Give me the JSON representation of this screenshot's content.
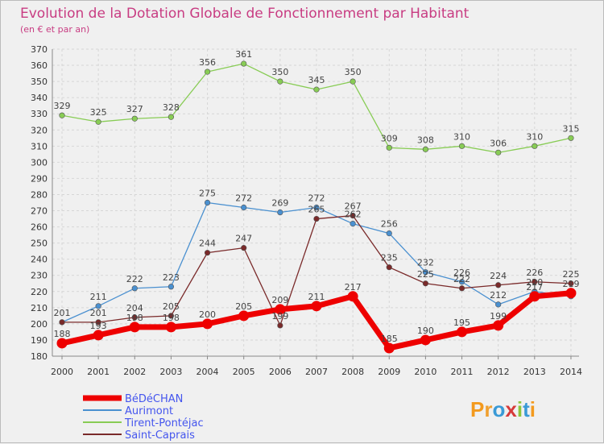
{
  "chart_data": {
    "type": "line",
    "title": "Evolution de la Dotation Globale de Fonctionnement par Habitant",
    "subtitle": "(en € et par an)",
    "xlabel": "",
    "ylabel": "",
    "x": [
      "2000",
      "2001",
      "2002",
      "2003",
      "2004",
      "2005",
      "2006",
      "2007",
      "2008",
      "2009",
      "2010",
      "2011",
      "2012",
      "2013",
      "2014"
    ],
    "ylim": [
      180,
      370
    ],
    "yticks": [
      180,
      190,
      200,
      210,
      220,
      230,
      240,
      250,
      260,
      270,
      280,
      290,
      300,
      310,
      320,
      330,
      340,
      350,
      360,
      370
    ],
    "grid": true,
    "legend_position": "bottom-left",
    "series": [
      {
        "name": "BéDéCHAN",
        "color": "#ee0000",
        "values": [
          188,
          193,
          198,
          198,
          200,
          205,
          209,
          211,
          217,
          185,
          190,
          195,
          199,
          217,
          219
        ]
      },
      {
        "name": "Aurimont",
        "color": "#4a90d0",
        "values": [
          201,
          211,
          222,
          223,
          275,
          272,
          269,
          272,
          262,
          256,
          232,
          226,
          212,
          220,
          217
        ]
      },
      {
        "name": "Tirent-Pontéjac",
        "color": "#88cc55",
        "values": [
          329,
          325,
          327,
          328,
          356,
          361,
          350,
          345,
          350,
          309,
          308,
          310,
          306,
          310,
          315
        ]
      },
      {
        "name": "Saint-Caprais",
        "color": "#7a2a2a",
        "values": [
          201,
          201,
          204,
          205,
          244,
          247,
          199,
          265,
          267,
          235,
          225,
          222,
          224,
          226,
          225
        ]
      }
    ],
    "data_labels": [
      {
        "x": "2000",
        "text": "329"
      },
      {
        "x": "2001",
        "text": "325"
      },
      {
        "x": "2002",
        "text": "327"
      },
      {
        "x": "2003",
        "text": "328"
      },
      {
        "x": "2004",
        "text": "356"
      },
      {
        "x": "2005",
        "text": "361"
      },
      {
        "x": "2006",
        "text": "350"
      },
      {
        "x": "2007",
        "text": "345"
      },
      {
        "x": "2008",
        "text": "350"
      },
      {
        "x": "2009",
        "text": "309"
      },
      {
        "x": "2010",
        "text": "308"
      },
      {
        "x": "2011",
        "text": "310"
      },
      {
        "x": "2012",
        "text": "306"
      },
      {
        "x": "2013",
        "text": "310"
      },
      {
        "x": "2014",
        "text": "315"
      },
      {
        "x": "2001",
        "text": "211"
      },
      {
        "x": "2002",
        "text": "222"
      },
      {
        "x": "2003",
        "text": "223"
      },
      {
        "x": "2004",
        "text": "275"
      },
      {
        "x": "2005",
        "text": "272"
      },
      {
        "x": "2006",
        "text": "269"
      },
      {
        "x": "2007",
        "text": "272"
      },
      {
        "x": "2009",
        "text": "256"
      },
      {
        "x": "2010",
        "text": "232"
      },
      {
        "x": "2011",
        "text": "226"
      },
      {
        "x": "2014",
        "text": "225"
      },
      {
        "x": "2000",
        "text": "201"
      },
      {
        "x": "2001",
        "text": "201"
      },
      {
        "x": "2002",
        "text": "204"
      },
      {
        "x": "2003",
        "text": "205"
      },
      {
        "x": "2004",
        "text": "244"
      },
      {
        "x": "2005",
        "text": "247"
      },
      {
        "x": "2006",
        "text": "199"
      },
      {
        "x": "2007",
        "text": "265"
      },
      {
        "x": "2008",
        "text": "267"
      },
      {
        "x": "2009",
        "text": "235"
      },
      {
        "x": "2010",
        "text": "225"
      },
      {
        "x": "2011",
        "text": "222"
      },
      {
        "x": "2012",
        "text": "224"
      },
      {
        "x": "2013",
        "text": "226"
      },
      {
        "x": "2014",
        "text": "219"
      },
      {
        "x": "2000",
        "text": "188"
      },
      {
        "x": "2001",
        "text": "193"
      },
      {
        "x": "2002",
        "text": "198"
      },
      {
        "x": "2003",
        "text": "198"
      },
      {
        "x": "2004",
        "text": "200"
      },
      {
        "x": "2005",
        "text": "205"
      },
      {
        "x": "2006",
        "text": "209"
      },
      {
        "x": "2007",
        "text": "211"
      },
      {
        "x": "2008",
        "text": "217"
      },
      {
        "x": "2009",
        "text": "185"
      },
      {
        "x": "2010",
        "text": "190"
      },
      {
        "x": "2011",
        "text": "195"
      },
      {
        "x": "2012",
        "text": "199"
      },
      {
        "x": "2013",
        "text": "217"
      },
      {
        "x": "2008",
        "text": "262"
      },
      {
        "x": "2012",
        "text": "212"
      },
      {
        "x": "2013",
        "text": "220"
      }
    ]
  },
  "logo": {
    "text": "Proxiti"
  }
}
